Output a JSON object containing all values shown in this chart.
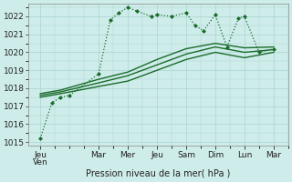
{
  "xlabel": "Pression niveau de la mer( hPa )",
  "bg_color": "#ceecea",
  "grid_color": "#a8d5d1",
  "line_color": "#1a6b2a",
  "ylim": [
    1015,
    1022.5
  ],
  "yticks": [
    1015,
    1016,
    1017,
    1018,
    1019,
    1020,
    1021,
    1022
  ],
  "xtick_labels": [
    "Jeu\nVen",
    "Mar",
    "Mer",
    "Jeu",
    "Sam",
    "Dim",
    "Lun",
    "Mar"
  ],
  "xtick_positions": [
    0,
    2,
    3,
    4,
    5,
    6,
    7,
    8
  ],
  "xlim": [
    -0.4,
    8.5
  ],
  "line1_x": [
    0,
    0.4,
    0.7,
    1.0,
    2.0,
    2.4,
    2.7,
    3.0,
    3.3,
    3.8,
    4.0,
    4.5,
    5.0,
    5.3,
    5.6,
    6.0,
    6.4,
    6.8,
    7.0,
    7.5,
    8.0
  ],
  "line1_y": [
    1015.2,
    1017.2,
    1017.5,
    1017.6,
    1018.8,
    1021.8,
    1022.2,
    1022.5,
    1022.3,
    1022.0,
    1022.1,
    1022.0,
    1022.2,
    1021.5,
    1021.2,
    1022.1,
    1020.3,
    1021.9,
    1022.0,
    1020.0,
    1020.2
  ],
  "line2_x": [
    0,
    0.7,
    2.0,
    3.0,
    4.0,
    5.0,
    6.0,
    7.0,
    8.0
  ],
  "line2_y": [
    1017.5,
    1017.7,
    1018.1,
    1018.4,
    1019.0,
    1019.6,
    1020.0,
    1019.7,
    1020.0
  ],
  "line3_x": [
    0,
    0.7,
    2.0,
    3.0,
    4.0,
    5.0,
    6.0,
    7.0,
    8.0
  ],
  "line3_y": [
    1017.6,
    1017.8,
    1018.3,
    1018.7,
    1019.3,
    1019.9,
    1020.3,
    1020.0,
    1020.15
  ],
  "line4_x": [
    0,
    0.7,
    2.0,
    3.0,
    4.0,
    5.0,
    6.0,
    7.0,
    8.0
  ],
  "line4_y": [
    1017.7,
    1017.9,
    1018.5,
    1018.9,
    1019.6,
    1020.2,
    1020.5,
    1020.25,
    1020.3
  ],
  "xlabel_fontsize": 7,
  "tick_fontsize": 6.5
}
